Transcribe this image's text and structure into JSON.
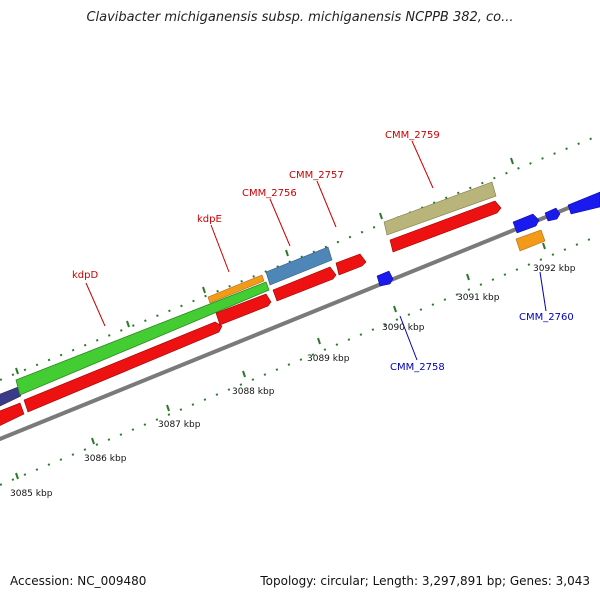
{
  "title": "Clavibacter michiganensis subsp. michiganensis NCPPB 382, co...",
  "footer": {
    "accession": "Accession: NC_009480",
    "summary": "Topology: circular; Length: 3,297,891 bp; Genes: 3,043"
  },
  "colors": {
    "backbone": "#8c8c8c",
    "cds": "#ee1111",
    "green": "#44cc33",
    "orange": "#f39a1a",
    "steel_blue": "#4f86b8",
    "khaki": "#b8b47a",
    "blue": "#1a1aee",
    "navy": "#3a3a8a",
    "tick": "#2a7a2a",
    "label_forward": "#cc0000",
    "label_reverse": "#0000bb"
  },
  "scale_ticks": [
    "3085 kbp",
    "3086 kbp",
    "3087 kbp",
    "3088 kbp",
    "3089 kbp",
    "3090 kbp",
    "3091 kbp",
    "3092 kbp"
  ],
  "labels": {
    "forward": [
      "kdpD",
      "kdpE",
      "CMM_2756",
      "CMM_2757",
      "CMM_2759"
    ],
    "reverse": [
      "CMM_2758",
      "CMM_2760"
    ]
  }
}
